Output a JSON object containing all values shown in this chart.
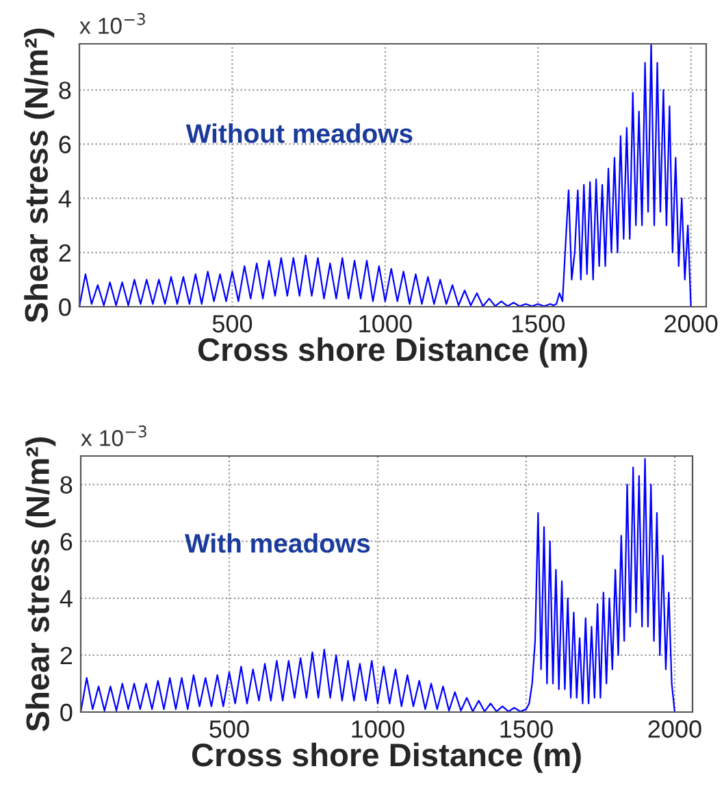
{
  "chart_data": [
    {
      "type": "line",
      "xlabel": "Cross shore Distance (m)",
      "ylabel": "Shear stress (N/m²)",
      "annotations": [
        "x 10$^{−3}$",
        "Without meadows"
      ],
      "xlim": [
        0,
        2050
      ],
      "ylim": [
        0,
        9.7
      ],
      "xticks": [
        500,
        1000,
        1500,
        2000
      ],
      "yticks": [
        0,
        2,
        4,
        6,
        8
      ],
      "grid": true,
      "line_style": "solid",
      "series": [
        {
          "color": "#0000ff",
          "x": [
            0,
            20,
            40,
            60,
            80,
            100,
            120,
            140,
            160,
            180,
            200,
            220,
            240,
            260,
            280,
            300,
            320,
            340,
            360,
            380,
            400,
            420,
            440,
            460,
            480,
            500,
            520,
            540,
            560,
            580,
            600,
            620,
            640,
            660,
            680,
            700,
            720,
            740,
            760,
            780,
            800,
            820,
            840,
            860,
            880,
            900,
            920,
            940,
            960,
            980,
            1000,
            1020,
            1040,
            1060,
            1080,
            1100,
            1120,
            1140,
            1160,
            1180,
            1200,
            1220,
            1240,
            1260,
            1280,
            1300,
            1320,
            1340,
            1360,
            1380,
            1400,
            1420,
            1440,
            1460,
            1480,
            1500,
            1520,
            1540,
            1550,
            1560,
            1570,
            1580,
            1590,
            1600,
            1610,
            1620,
            1630,
            1640,
            1650,
            1660,
            1670,
            1680,
            1690,
            1700,
            1710,
            1720,
            1730,
            1740,
            1750,
            1760,
            1770,
            1780,
            1790,
            1800,
            1810,
            1820,
            1830,
            1840,
            1850,
            1860,
            1870,
            1880,
            1890,
            1900,
            1910,
            1920,
            1930,
            1940,
            1950,
            1960,
            1970,
            1980,
            1990,
            2000
          ],
          "values": [
            0,
            1.2,
            0.1,
            0.8,
            0.05,
            0.9,
            0.05,
            0.9,
            0.05,
            1.0,
            0.1,
            1.0,
            0.1,
            1.0,
            0.1,
            1.1,
            0.1,
            1.1,
            0.1,
            1.2,
            0.1,
            1.3,
            0.2,
            1.2,
            0.2,
            1.3,
            0.2,
            1.5,
            0.3,
            1.6,
            0.3,
            1.7,
            0.4,
            1.8,
            0.4,
            1.8,
            0.4,
            1.9,
            0.4,
            1.8,
            0.3,
            1.6,
            0.3,
            1.8,
            0.3,
            1.7,
            0.3,
            1.7,
            0.2,
            1.5,
            0.2,
            1.4,
            0.2,
            1.3,
            0.1,
            1.2,
            0.1,
            1.1,
            0.1,
            1.0,
            0.1,
            0.8,
            0.05,
            0.6,
            0.05,
            0.5,
            0.02,
            0.3,
            0.02,
            0.2,
            0.02,
            0.15,
            0.02,
            0.1,
            0.02,
            0.1,
            0.02,
            0.1,
            0.05,
            0.1,
            0.5,
            0.2,
            2.3,
            4.3,
            1.0,
            2.0,
            4.3,
            1.0,
            4.5,
            1.2,
            4.6,
            1.0,
            4.7,
            1.5,
            4.5,
            1.5,
            5.1,
            2.0,
            5.5,
            2.0,
            6.3,
            2.5,
            6.6,
            2.5,
            7.9,
            3.0,
            7.2,
            3.0,
            9.0,
            3.5,
            9.7,
            3.0,
            9.0,
            3.5,
            8.0,
            3.0,
            7.4,
            2.0,
            5.5,
            1.5,
            4.0,
            1.0,
            3.0,
            0
          ]
        }
      ]
    },
    {
      "type": "line",
      "xlabel": "Cross shore Distance (m)",
      "ylabel": "Shear stress (N/m²)",
      "annotations": [
        "x 10$^{−3}$",
        "With meadows"
      ],
      "xlim": [
        0,
        2060
      ],
      "ylim": [
        0,
        9
      ],
      "xticks": [
        500,
        1000,
        1500,
        2000
      ],
      "yticks": [
        0,
        2,
        4,
        6,
        8
      ],
      "grid": true,
      "line_style": "solid",
      "series": [
        {
          "color": "#0000ff",
          "x": [
            0,
            20,
            40,
            60,
            80,
            100,
            120,
            140,
            160,
            180,
            200,
            220,
            240,
            260,
            280,
            300,
            320,
            340,
            360,
            380,
            400,
            420,
            440,
            460,
            480,
            500,
            520,
            540,
            560,
            580,
            600,
            620,
            640,
            660,
            680,
            700,
            720,
            740,
            760,
            780,
            800,
            820,
            840,
            860,
            880,
            900,
            920,
            940,
            960,
            980,
            1000,
            1020,
            1040,
            1060,
            1080,
            1100,
            1120,
            1140,
            1160,
            1180,
            1200,
            1220,
            1240,
            1260,
            1280,
            1300,
            1320,
            1340,
            1360,
            1380,
            1400,
            1420,
            1440,
            1460,
            1480,
            1500,
            1510,
            1520,
            1530,
            1540,
            1550,
            1560,
            1570,
            1580,
            1590,
            1600,
            1610,
            1620,
            1630,
            1640,
            1650,
            1660,
            1670,
            1680,
            1690,
            1700,
            1710,
            1720,
            1730,
            1740,
            1750,
            1760,
            1770,
            1780,
            1790,
            1800,
            1810,
            1820,
            1830,
            1840,
            1850,
            1860,
            1870,
            1880,
            1890,
            1900,
            1910,
            1920,
            1930,
            1940,
            1950,
            1960,
            1970,
            1980,
            1990,
            2000
          ],
          "values": [
            0,
            1.2,
            0.1,
            0.9,
            0.05,
            0.9,
            0.05,
            1.0,
            0.1,
            1.0,
            0.1,
            1.0,
            0.1,
            1.1,
            0.1,
            1.2,
            0.1,
            1.2,
            0.1,
            1.3,
            0.2,
            1.2,
            0.2,
            1.3,
            0.2,
            1.4,
            0.3,
            1.6,
            0.3,
            1.5,
            0.4,
            1.7,
            0.4,
            1.8,
            0.4,
            1.8,
            0.5,
            1.9,
            0.5,
            2.1,
            0.5,
            2.2,
            0.5,
            2.0,
            0.4,
            1.8,
            0.4,
            1.7,
            0.4,
            1.8,
            0.3,
            1.6,
            0.3,
            1.5,
            0.2,
            1.3,
            0.2,
            1.1,
            0.1,
            1.0,
            0.1,
            0.9,
            0.05,
            0.7,
            0.05,
            0.5,
            0.02,
            0.4,
            0.02,
            0.3,
            0.02,
            0.2,
            0.02,
            0.15,
            0.02,
            0.1,
            0.3,
            1.0,
            2.5,
            7.0,
            1.5,
            6.5,
            1.0,
            6.0,
            1.0,
            5.0,
            0.8,
            4.6,
            0.8,
            4.0,
            0.5,
            3.5,
            0.5,
            2.6,
            0.3,
            3.3,
            0.3,
            3.0,
            0.5,
            3.8,
            0.5,
            4.2,
            1.0,
            4.0,
            1.5,
            5.0,
            2.0,
            6.2,
            2.5,
            8.0,
            3.0,
            8.6,
            3.5,
            8.3,
            3.0,
            8.9,
            3.0,
            8.0,
            2.5,
            7.0,
            2.0,
            5.5,
            1.5,
            4.2,
            1.0,
            0
          ]
        }
      ]
    }
  ]
}
